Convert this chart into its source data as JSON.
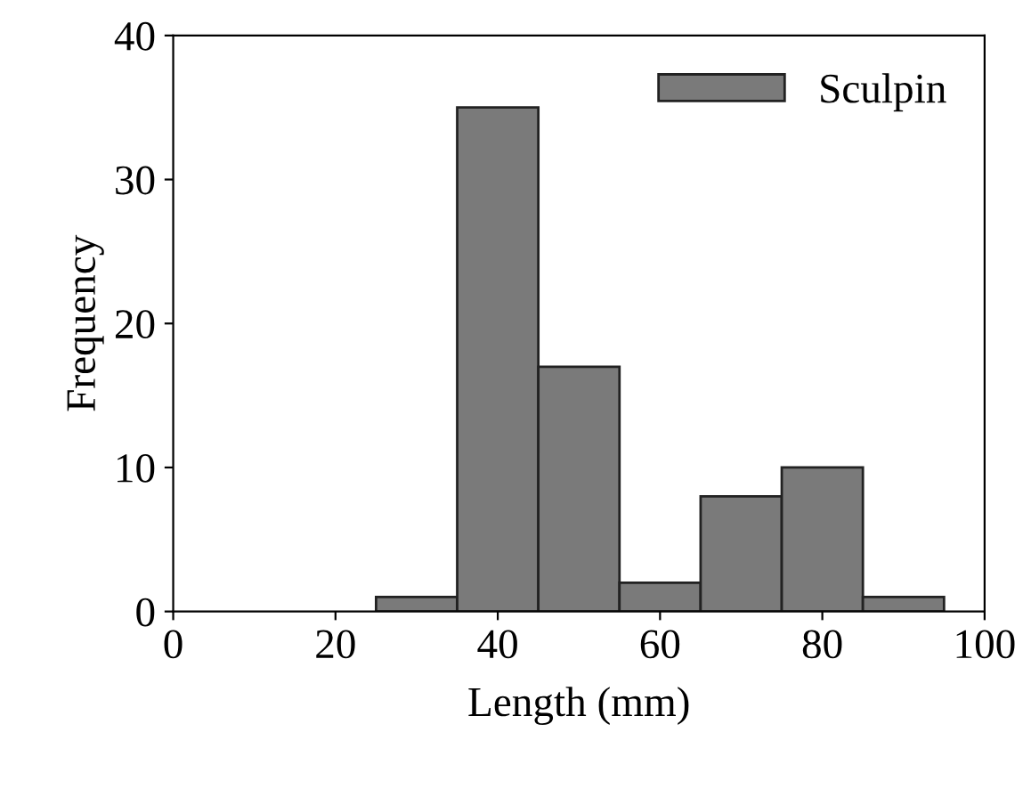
{
  "chart_data": {
    "type": "histogram",
    "xlabel": "Length (mm)",
    "ylabel": "Frequency",
    "bins": [
      25,
      35,
      45,
      55,
      65,
      75,
      85,
      95
    ],
    "series": [
      {
        "name": "Sculpin",
        "color": "#7a7a7a",
        "values": [
          1,
          35,
          17,
          2,
          8,
          10,
          1
        ]
      }
    ],
    "xlim": [
      0,
      100
    ],
    "xticks": [
      0,
      20,
      40,
      60,
      80,
      100
    ],
    "ylim": [
      0,
      40
    ],
    "yticks": [
      0,
      10,
      20,
      30,
      40
    ],
    "grid": false,
    "legend": "top right"
  }
}
